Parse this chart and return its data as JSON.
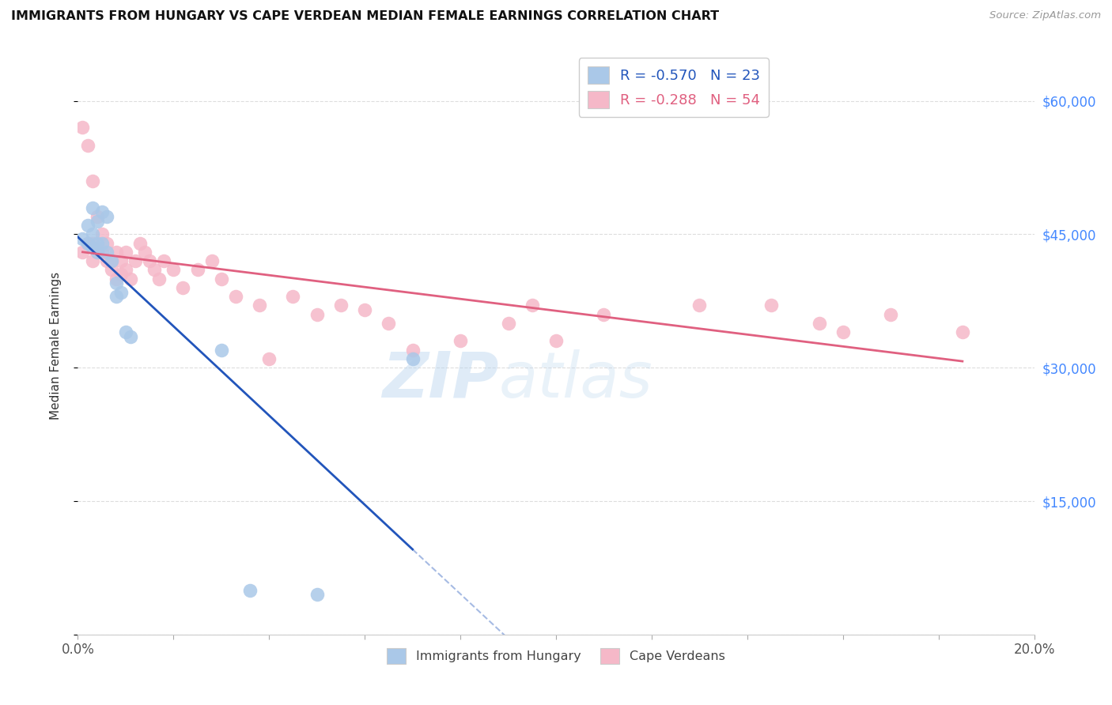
{
  "title": "IMMIGRANTS FROM HUNGARY VS CAPE VERDEAN MEDIAN FEMALE EARNINGS CORRELATION CHART",
  "source": "Source: ZipAtlas.com",
  "ylabel": "Median Female Earnings",
  "xlim": [
    0.0,
    0.2
  ],
  "ylim": [
    0,
    65000
  ],
  "xticks": [
    0.0,
    0.02,
    0.04,
    0.06,
    0.08,
    0.1,
    0.12,
    0.14,
    0.16,
    0.18,
    0.2
  ],
  "yticks_right": [
    0,
    15000,
    30000,
    45000,
    60000
  ],
  "ytick_labels_right": [
    "",
    "$15,000",
    "$30,000",
    "$45,000",
    "$60,000"
  ],
  "legend_r1": "-0.570",
  "legend_n1": "23",
  "legend_r2": "-0.288",
  "legend_n2": "54",
  "watermark_zip": "ZIP",
  "watermark_atlas": "atlas",
  "background_color": "#ffffff",
  "grid_color": "#dddddd",
  "hungary_color": "#aac8e8",
  "cape_verde_color": "#f5b8c8",
  "hungary_line_color": "#2255bb",
  "cape_verde_line_color": "#e06080",
  "hungary_x": [
    0.001,
    0.002,
    0.002,
    0.003,
    0.003,
    0.003,
    0.004,
    0.004,
    0.004,
    0.005,
    0.005,
    0.006,
    0.006,
    0.007,
    0.008,
    0.008,
    0.009,
    0.01,
    0.011,
    0.03,
    0.05,
    0.036,
    0.07
  ],
  "hungary_y": [
    44500,
    46000,
    44000,
    48000,
    45000,
    43500,
    46500,
    44000,
    43000,
    47500,
    44000,
    43000,
    47000,
    42000,
    39500,
    38000,
    38500,
    34000,
    33500,
    32000,
    4500,
    5000,
    31000
  ],
  "cape_verde_x": [
    0.001,
    0.001,
    0.002,
    0.002,
    0.003,
    0.003,
    0.003,
    0.004,
    0.004,
    0.005,
    0.005,
    0.006,
    0.006,
    0.007,
    0.007,
    0.008,
    0.008,
    0.009,
    0.009,
    0.01,
    0.01,
    0.011,
    0.012,
    0.013,
    0.014,
    0.015,
    0.016,
    0.017,
    0.018,
    0.02,
    0.022,
    0.025,
    0.028,
    0.03,
    0.033,
    0.038,
    0.04,
    0.045,
    0.05,
    0.055,
    0.06,
    0.065,
    0.07,
    0.08,
    0.09,
    0.095,
    0.1,
    0.11,
    0.13,
    0.145,
    0.155,
    0.16,
    0.17,
    0.185
  ],
  "cape_verde_y": [
    43000,
    57000,
    55000,
    44000,
    51000,
    44000,
    42000,
    47000,
    43000,
    45000,
    43000,
    44000,
    42000,
    42000,
    41000,
    43000,
    40000,
    42000,
    40500,
    43000,
    41000,
    40000,
    42000,
    44000,
    43000,
    42000,
    41000,
    40000,
    42000,
    41000,
    39000,
    41000,
    42000,
    40000,
    38000,
    37000,
    31000,
    38000,
    36000,
    37000,
    36500,
    35000,
    32000,
    33000,
    35000,
    37000,
    33000,
    36000,
    37000,
    37000,
    35000,
    34000,
    36000,
    34000
  ]
}
